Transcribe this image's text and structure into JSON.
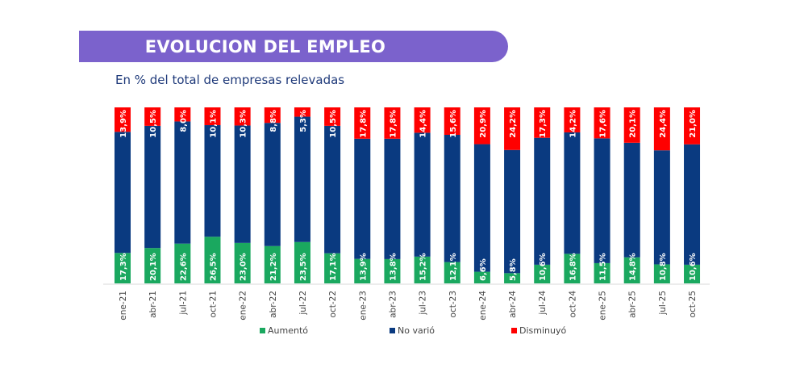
{
  "header": {
    "title": "EVOLUCION DEL EMPLEO",
    "subtitle": "En % del total de empresas relevadas"
  },
  "chart_data": {
    "type": "bar",
    "stacked": true,
    "title": "EVOLUCION DEL EMPLEO",
    "subtitle": "En % del total de empresas relevadas",
    "categories": [
      "ene-21",
      "abr-21",
      "jul-21",
      "oct-21",
      "ene-22",
      "abr-22",
      "jul-22",
      "oct-22",
      "ene-23",
      "abr-23",
      "jul-23",
      "oct-23",
      "ene-24",
      "abr-24",
      "jul-24",
      "oct-24",
      "ene-25",
      "abr-25",
      "jul-25",
      "oct-25"
    ],
    "series": [
      {
        "name": "Aumentó",
        "color": "#1aa85f",
        "labeled": true,
        "values": [
          17.3,
          20.1,
          22.6,
          26.5,
          23.0,
          21.2,
          23.5,
          17.1,
          13.9,
          13.8,
          15.2,
          12.1,
          6.6,
          5.8,
          10.6,
          16.8,
          11.5,
          14.8,
          10.8,
          10.6
        ]
      },
      {
        "name": "No varió",
        "color": "#0a3a80",
        "labeled": false,
        "values": [
          68.8,
          69.4,
          69.4,
          63.4,
          66.7,
          70.0,
          71.2,
          72.4,
          68.3,
          68.4,
          70.4,
          72.3,
          72.5,
          70.0,
          72.1,
          69.0,
          70.9,
          65.1,
          64.8,
          68.4
        ]
      },
      {
        "name": "Disminuyó",
        "color": "#ff0000",
        "labeled": true,
        "values": [
          13.9,
          10.5,
          8.0,
          10.1,
          10.3,
          8.8,
          5.3,
          10.5,
          17.8,
          17.8,
          14.4,
          15.6,
          20.9,
          24.2,
          17.3,
          14.2,
          17.6,
          20.1,
          24.4,
          21.0
        ]
      }
    ],
    "value_format": "comma-decimal percent",
    "ylim": [
      0,
      100
    ],
    "grid": false,
    "legend_position": "bottom"
  }
}
